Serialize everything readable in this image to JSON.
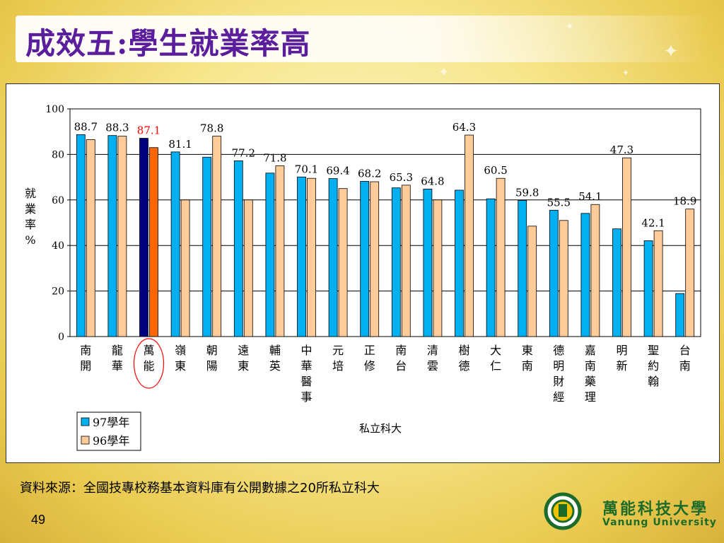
{
  "slide": {
    "title": "成效五:學生就業率高",
    "source": "資料來源：全國技專校務基本資料庫有公開數據之20所私立科大",
    "page_number": "49"
  },
  "logo": {
    "name_cn": "萬能科技大學",
    "name_en": "Vanung University"
  },
  "chart_data": {
    "type": "bar",
    "categories": [
      [
        "南",
        "開"
      ],
      [
        "龍",
        "華"
      ],
      [
        "萬",
        "能"
      ],
      [
        "嶺",
        "東"
      ],
      [
        "朝",
        "陽"
      ],
      [
        "遠",
        "東"
      ],
      [
        "輔",
        "英"
      ],
      [
        "中",
        "華",
        "醫",
        "事"
      ],
      [
        "元",
        "培"
      ],
      [
        "正",
        "修"
      ],
      [
        "南",
        "台"
      ],
      [
        "清",
        "雲"
      ],
      [
        "樹",
        "德"
      ],
      [
        "大",
        "仁"
      ],
      [
        "東",
        "南"
      ],
      [
        "德",
        "明",
        "財",
        "經"
      ],
      [
        "嘉",
        "南",
        "藥",
        "理"
      ],
      [
        "明",
        "新"
      ],
      [
        "聖",
        "約",
        "翰"
      ],
      [
        "台",
        "南"
      ]
    ],
    "series": [
      {
        "name": "97學年",
        "color": "#00b0f0",
        "values": [
          88.7,
          88.3,
          87.1,
          81.1,
          78.8,
          77.2,
          71.8,
          70.1,
          69.4,
          68.2,
          65.3,
          64.8,
          64.3,
          60.5,
          59.8,
          55.5,
          54.1,
          47.3,
          42.1,
          18.9
        ]
      },
      {
        "name": "96學年",
        "color": "#ffcc99",
        "values": [
          86.5,
          88.0,
          83.0,
          60.0,
          88.0,
          60.0,
          75.0,
          69.5,
          65.0,
          68.0,
          66.5,
          60.0,
          88.5,
          69.5,
          48.5,
          51.0,
          58.0,
          78.5,
          46.5,
          56.0
        ]
      }
    ],
    "data_labels": [
      "88.7",
      "88.3",
      "87.1",
      "81.1",
      "78.8",
      "77.2",
      "71.8",
      "70.1",
      "69.4",
      "68.2",
      "65.3",
      "64.8",
      "64.3",
      "60.5",
      "59.8",
      "55.5",
      "54.1",
      "47.3",
      "42.1",
      "18.9"
    ],
    "highlight_index": 2,
    "highlight_colors": {
      "bar97": "#000080",
      "bar96": "#ff6600",
      "label": "#ff0000",
      "circle": "#ff0000"
    },
    "ylabel": [
      "就",
      "業",
      "率",
      "%"
    ],
    "xlabel": "私立科大",
    "ylim": [
      0,
      100
    ],
    "yticks": [
      0,
      20,
      40,
      60,
      80,
      100
    ],
    "grid": true,
    "legend_placement": "bottom-left"
  }
}
